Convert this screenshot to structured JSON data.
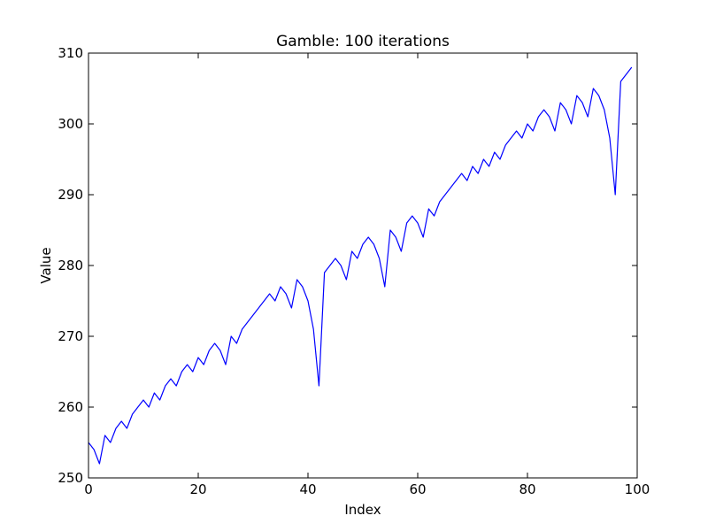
{
  "chart_data": {
    "type": "line",
    "title": "Gamble: 100 iterations",
    "xlabel": "Index",
    "ylabel": "Value",
    "xlim": [
      0,
      100
    ],
    "ylim": [
      250,
      310
    ],
    "x_ticks": [
      0,
      20,
      40,
      60,
      80,
      100
    ],
    "y_ticks": [
      250,
      260,
      270,
      280,
      290,
      300,
      310
    ],
    "grid": false,
    "line_color": "#0000ff",
    "series": [
      {
        "x": [
          0,
          1,
          2,
          3,
          4,
          5,
          6,
          7,
          8,
          9,
          10,
          11,
          12,
          13,
          14,
          15,
          16,
          17,
          18,
          19,
          20,
          21,
          22,
          23,
          24,
          25,
          26,
          27,
          28,
          29,
          30,
          31,
          32,
          33,
          34,
          35,
          36,
          37,
          38,
          39,
          40,
          41,
          42,
          43,
          44,
          45,
          46,
          47,
          48,
          49,
          50,
          51,
          52,
          53,
          54,
          55,
          56,
          57,
          58,
          59,
          60,
          61,
          62,
          63,
          64,
          65,
          66,
          67,
          68,
          69,
          70,
          71,
          72,
          73,
          74,
          75,
          76,
          77,
          78,
          79,
          80,
          81,
          82,
          83,
          84,
          85,
          86,
          87,
          88,
          89,
          90,
          91,
          92,
          93,
          94,
          95,
          96,
          97,
          98,
          99
        ],
        "values": [
          255,
          254,
          252,
          256,
          255,
          257,
          258,
          257,
          259,
          260,
          261,
          260,
          262,
          261,
          263,
          264,
          263,
          265,
          266,
          265,
          267,
          266,
          268,
          269,
          268,
          266,
          270,
          269,
          271,
          272,
          273,
          274,
          275,
          276,
          275,
          277,
          276,
          274,
          278,
          277,
          275,
          271,
          263,
          279,
          280,
          281,
          280,
          278,
          282,
          281,
          283,
          284,
          283,
          281,
          277,
          285,
          284,
          282,
          286,
          287,
          286,
          284,
          288,
          287,
          289,
          290,
          291,
          292,
          293,
          292,
          294,
          293,
          295,
          294,
          296,
          295,
          297,
          298,
          299,
          298,
          300,
          299,
          301,
          302,
          301,
          299,
          303,
          302,
          300,
          304,
          303,
          301,
          305,
          304,
          302,
          298,
          290,
          306,
          307,
          308
        ]
      }
    ]
  }
}
